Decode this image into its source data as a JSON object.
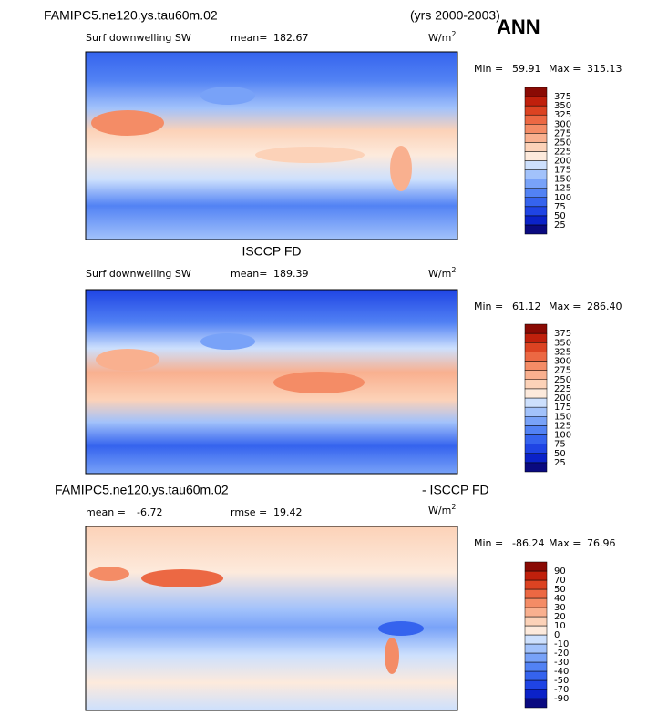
{
  "header": {
    "case": "FAMIPC5.ne120.ys.tau60m.02",
    "years": "(yrs 2000-2003)",
    "season": "ANN"
  },
  "panels": [
    {
      "variable": "Surf downwelling SW",
      "mean_label": "mean=",
      "mean": "182.67",
      "units": "W/m",
      "units_exp": "2",
      "min_label": "Min =",
      "min": "59.91",
      "max_label": "Max =",
      "max": "315.13"
    },
    {
      "title": "ISCCP FD",
      "variable": "Surf downwelling SW",
      "mean_label": "mean=",
      "mean": "189.39",
      "units": "W/m",
      "units_exp": "2",
      "min_label": "Min =",
      "min": "61.12",
      "max_label": "Max =",
      "max": "286.40"
    },
    {
      "title": "FAMIPC5.ne120.ys.tau60m.02",
      "title_right": "- ISCCP FD",
      "mean_label": "mean =",
      "mean": "-6.72",
      "rmse_label": "rmse =",
      "rmse": "19.42",
      "units": "W/m",
      "units_exp": "2",
      "min_label": "Min =",
      "min": "-86.24",
      "max_label": "Max =",
      "max": "76.96"
    }
  ],
  "colorbars": [
    {
      "levels": [
        25,
        50,
        75,
        100,
        125,
        150,
        175,
        200,
        225,
        250,
        275,
        300,
        325,
        350,
        375
      ],
      "colors": [
        "#0a0a80",
        "#0b22c8",
        "#1f44e4",
        "#3563ee",
        "#5282f4",
        "#78a2f8",
        "#a2c2fb",
        "#cde0fd",
        "#fdeadc",
        "#fcd2b8",
        "#f9b08f",
        "#f48c66",
        "#ec6843",
        "#dc4322",
        "#c0200c",
        "#8a0a04"
      ]
    },
    {
      "levels": [
        25,
        50,
        75,
        100,
        125,
        150,
        175,
        200,
        225,
        250,
        275,
        300,
        325,
        350,
        375
      ],
      "colors": [
        "#0a0a80",
        "#0b22c8",
        "#1f44e4",
        "#3563ee",
        "#5282f4",
        "#78a2f8",
        "#a2c2fb",
        "#cde0fd",
        "#fdeadc",
        "#fcd2b8",
        "#f9b08f",
        "#f48c66",
        "#ec6843",
        "#dc4322",
        "#c0200c",
        "#8a0a04"
      ]
    },
    {
      "levels": [
        -90,
        -70,
        -50,
        -40,
        -30,
        -20,
        -10,
        0,
        10,
        20,
        30,
        40,
        50,
        70,
        90
      ],
      "colors": [
        "#0a0a80",
        "#0b22c8",
        "#1f44e4",
        "#3563ee",
        "#5282f4",
        "#78a2f8",
        "#a2c2fb",
        "#cde0fd",
        "#fdeadc",
        "#fcd2b8",
        "#f9b08f",
        "#f48c66",
        "#ec6843",
        "#dc4322",
        "#c0200c",
        "#8a0a04"
      ]
    }
  ]
}
